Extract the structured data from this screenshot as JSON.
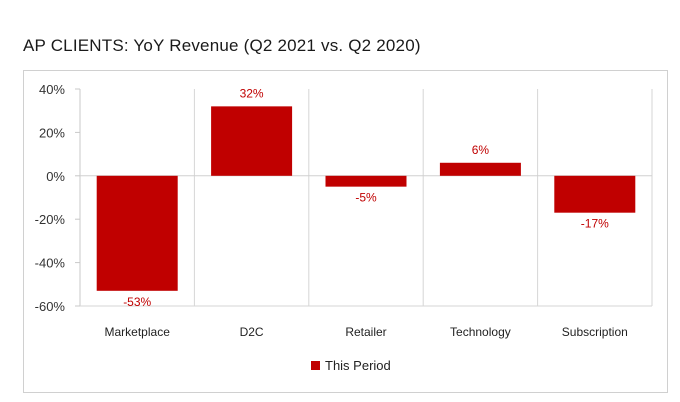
{
  "header": {
    "title": "AP CLIENTS:  YoY Revenue (Q2 2021 vs. Q2 2020)"
  },
  "chart_data": {
    "type": "bar",
    "title": "AP CLIENTS:  YoY Revenue (Q2 2021 vs. Q2 2020)",
    "categories": [
      "Marketplace",
      "D2C",
      "Retailer",
      "Technology",
      "Subscription"
    ],
    "series": [
      {
        "name": "This Period",
        "values": [
          -53,
          32,
          -5,
          6,
          -17
        ],
        "color": "#c00000"
      }
    ],
    "data_labels": [
      "-53%",
      "32%",
      "-5%",
      "6%",
      "-17%"
    ],
    "yticks": [
      40,
      20,
      0,
      -20,
      -40,
      -60
    ],
    "ytick_labels": [
      "40%",
      "20%",
      "0%",
      "-20%",
      "-40%",
      "-60%"
    ],
    "ylim": [
      -60,
      40
    ],
    "xlabel": "",
    "ylabel": "",
    "grid": "vertical separators between categories",
    "legend": "bottom-center"
  },
  "legend": {
    "label": "This Period",
    "color": "#c00000"
  }
}
